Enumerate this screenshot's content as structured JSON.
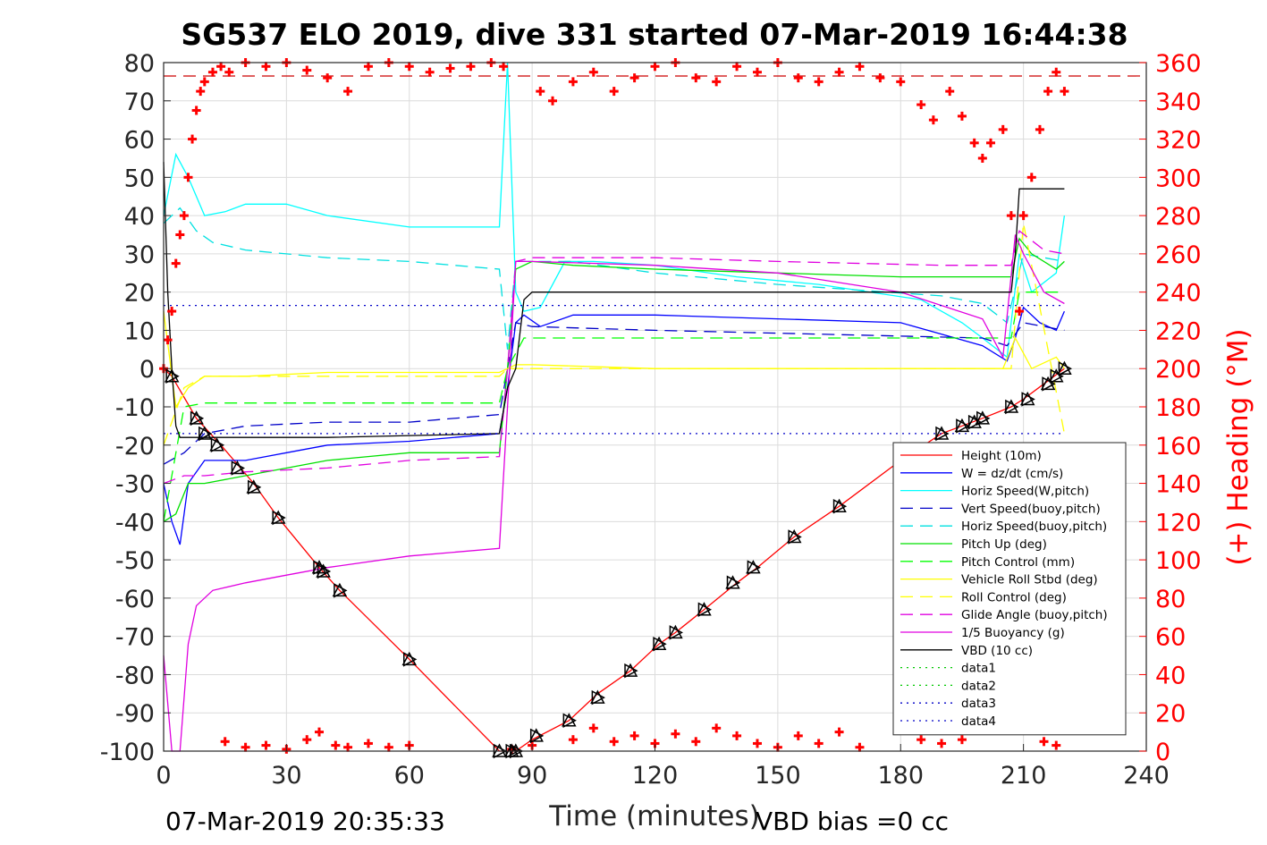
{
  "chart_data": {
    "type": "line",
    "title": "SG537 ELO 2019, dive 331 started 07-Mar-2019 16:44:38",
    "xlabel": "Time (minutes)",
    "ylabel_right": "(+) Heading (°M)",
    "footer_left": "07-Mar-2019 20:35:33",
    "footer_right": "VBD bias =0 cc",
    "xlim": [
      0,
      240
    ],
    "ylim": [
      -100,
      80
    ],
    "ylim_right": [
      0,
      360
    ],
    "x_ticks": [
      "0",
      "30",
      "60",
      "90",
      "120",
      "150",
      "180",
      "210",
      "240"
    ],
    "y_ticks": [
      "80",
      "70",
      "60",
      "50",
      "40",
      "30",
      "20",
      "10",
      "0",
      "-10",
      "-20",
      "-30",
      "-40",
      "-50",
      "-60",
      "-70",
      "-80",
      "-90",
      "-100"
    ],
    "y_ticks_right": [
      "360",
      "340",
      "320",
      "300",
      "280",
      "260",
      "240",
      "220",
      "200",
      "180",
      "160",
      "140",
      "120",
      "100",
      "80",
      "60",
      "40",
      "20",
      "0"
    ],
    "grid": true,
    "legend_position": "lower-right",
    "series": [
      {
        "name": "Height (10m)",
        "color": "#ff0000",
        "style": "solid",
        "x": [
          0,
          2,
          8,
          14,
          22,
          28,
          38,
          43,
          60,
          82,
          84,
          86,
          90,
          99,
          106,
          114,
          121,
          125,
          132,
          140,
          145,
          154,
          165,
          180,
          190,
          200,
          207,
          210,
          215,
          220
        ],
        "y": [
          0,
          -2,
          -13,
          -20,
          -30,
          -39,
          -52,
          -58,
          -76,
          -100,
          -100,
          -100,
          -97,
          -92,
          -85,
          -79,
          -72,
          -69,
          -63,
          -56,
          -52,
          -44,
          -36,
          -24,
          -17,
          -13,
          -10,
          -8,
          -4,
          0
        ]
      },
      {
        "name": "W = dz/dt (cm/s)",
        "color": "#0000ff",
        "style": "solid",
        "x": [
          0,
          2,
          4,
          6,
          10,
          20,
          30,
          40,
          60,
          82,
          84,
          86,
          88,
          92,
          100,
          120,
          150,
          180,
          200,
          206,
          208,
          210,
          214,
          218,
          220
        ],
        "y": [
          -30,
          -40,
          -46,
          -30,
          -24,
          -24,
          -22,
          -20,
          -19,
          -17,
          -5,
          12,
          14,
          11,
          14,
          14,
          13,
          12,
          6,
          2,
          8,
          16,
          12,
          10,
          15
        ]
      },
      {
        "name": "Horiz Speed(W,pitch)",
        "color": "#00ffff",
        "style": "solid",
        "x": [
          0,
          3,
          6,
          10,
          15,
          20,
          30,
          40,
          60,
          82,
          84,
          86,
          88,
          92,
          98,
          105,
          120,
          140,
          160,
          185,
          195,
          200,
          206,
          209,
          212,
          218,
          220
        ],
        "y": [
          40,
          56,
          50,
          40,
          41,
          43,
          43,
          40,
          37,
          37,
          80,
          20,
          15,
          16,
          28,
          28,
          27,
          24,
          22,
          18,
          12,
          8,
          3,
          30,
          20,
          25,
          40
        ]
      },
      {
        "name": "Vert Speed(buoy,pitch)",
        "color": "#0000c8",
        "style": "dashed",
        "x": [
          0,
          5,
          10,
          20,
          40,
          60,
          82,
          84,
          86,
          90,
          120,
          160,
          200,
          206,
          210,
          220
        ],
        "y": [
          -25,
          -22,
          -17,
          -15,
          -14,
          -14,
          -12,
          0,
          12,
          11,
          10,
          9,
          8,
          6,
          12,
          10
        ]
      },
      {
        "name": "Horiz Speed(buoy,pitch)",
        "color": "#00e0e0",
        "style": "dashed",
        "x": [
          0,
          4,
          8,
          12,
          20,
          40,
          60,
          82,
          84,
          86,
          90,
          100,
          120,
          150,
          190,
          200,
          206,
          210,
          220
        ],
        "y": [
          38,
          42,
          36,
          33,
          31,
          29,
          28,
          26,
          5,
          28,
          28,
          28,
          25,
          22,
          19,
          17,
          12,
          30,
          28
        ]
      },
      {
        "name": "Pitch Up (deg)",
        "color": "#00e000",
        "style": "solid",
        "x": [
          0,
          3,
          6,
          10,
          20,
          40,
          60,
          82,
          84,
          86,
          90,
          100,
          120,
          150,
          180,
          200,
          207,
          209,
          212,
          218,
          220
        ],
        "y": [
          -40,
          -38,
          -30,
          -30,
          -28,
          -24,
          -22,
          -22,
          0,
          26,
          28,
          27,
          26,
          25,
          24,
          24,
          24,
          34,
          30,
          26,
          28
        ]
      },
      {
        "name": "Pitch Control (mm)",
        "color": "#00ff00",
        "style": "dashed",
        "x": [
          0,
          5,
          10,
          82,
          84,
          88,
          150,
          207,
          209,
          220
        ],
        "y": [
          -40,
          -10,
          -9,
          -9,
          0,
          8,
          8,
          8,
          20,
          20
        ]
      },
      {
        "name": "Vehicle Roll Stbd (deg)",
        "color": "#ffff00",
        "style": "solid",
        "x": [
          0,
          3,
          6,
          10,
          15,
          20,
          40,
          60,
          82,
          84,
          86,
          90,
          120,
          150,
          180,
          200,
          205,
          208,
          212,
          218,
          220
        ],
        "y": [
          15,
          -10,
          -5,
          -2,
          -2,
          -2,
          -1,
          -1,
          -1,
          0,
          1,
          1,
          0,
          0,
          0,
          0,
          0,
          8,
          0,
          3,
          0
        ]
      },
      {
        "name": "Roll Control (deg)",
        "color": "#ffff00",
        "style": "dashed",
        "x": [
          0,
          5,
          10,
          40,
          60,
          82,
          84,
          86,
          120,
          180,
          207,
          210,
          220
        ],
        "y": [
          -20,
          -5,
          -2,
          -2,
          -2,
          -2,
          0,
          0,
          0,
          0,
          0,
          38,
          -17
        ]
      },
      {
        "name": "Glide Angle (buoy,pitch)",
        "color": "#e000e0",
        "style": "dashed",
        "x": [
          0,
          5,
          10,
          20,
          40,
          60,
          82,
          84,
          86,
          90,
          120,
          150,
          190,
          207,
          209,
          215,
          220
        ],
        "y": [
          -30,
          -28,
          -28,
          -27,
          -26,
          -24,
          -23,
          0,
          28,
          29,
          29,
          28,
          27,
          27,
          36,
          31,
          30
        ]
      },
      {
        "name": "1/5 Buoyancy (g)",
        "color": "#e000e0",
        "style": "solid",
        "x": [
          0,
          2,
          4,
          6,
          8,
          12,
          20,
          30,
          40,
          60,
          82,
          84,
          86,
          90,
          120,
          150,
          180,
          200,
          205,
          208,
          210,
          215,
          220
        ],
        "y": [
          -75,
          -100,
          -100,
          -72,
          -62,
          -58,
          -56,
          -54,
          -52,
          -49,
          -47,
          -10,
          28,
          28,
          27,
          25,
          20,
          13,
          3,
          35,
          30,
          20,
          17
        ]
      },
      {
        "name": "VBD (10 cc)",
        "color": "#000000",
        "style": "solid",
        "x": [
          0,
          1,
          2,
          3,
          4,
          8,
          40,
          82,
          84,
          86,
          88,
          90,
          120,
          150,
          207,
          208,
          209,
          220
        ],
        "y": [
          54,
          20,
          0,
          -15,
          -18,
          -18,
          -18,
          -17,
          -5,
          0,
          18,
          20,
          20,
          20,
          20,
          30,
          47,
          47
        ]
      },
      {
        "name": "data1",
        "color": "#00c800",
        "style": "dotted",
        "x": [],
        "y": []
      },
      {
        "name": "data2",
        "color": "#00c800",
        "style": "dotted",
        "x": [],
        "y": []
      },
      {
        "name": "data3",
        "color": "#0000c8",
        "style": "dotted",
        "x": [
          0,
          220
        ],
        "y": [
          16.5,
          16.5
        ]
      },
      {
        "name": "data4",
        "color": "#0000c8",
        "style": "dotted",
        "x": [
          0,
          220
        ],
        "y": [
          -17,
          -17
        ]
      }
    ],
    "heading_series": {
      "color": "#ff0000",
      "marker": "+",
      "axis": "right",
      "x": [
        0,
        1,
        2,
        3,
        4,
        5,
        6,
        7,
        8,
        9,
        10,
        12,
        14,
        16,
        20,
        25,
        30,
        35,
        40,
        45,
        50,
        55,
        60,
        65,
        70,
        75,
        80,
        83,
        92,
        95,
        100,
        105,
        110,
        115,
        120,
        125,
        130,
        135,
        140,
        145,
        150,
        155,
        160,
        165,
        170,
        175,
        180,
        185,
        188,
        192,
        195,
        198,
        200,
        202,
        205,
        207,
        209,
        210,
        212,
        214,
        216,
        218,
        220
      ],
      "y": [
        200,
        215,
        230,
        255,
        270,
        280,
        300,
        320,
        335,
        345,
        350,
        355,
        358,
        355,
        360,
        358,
        360,
        356,
        352,
        345,
        358,
        360,
        358,
        355,
        357,
        358,
        360,
        358,
        345,
        340,
        350,
        355,
        345,
        352,
        358,
        360,
        352,
        350,
        358,
        355,
        360,
        352,
        350,
        355,
        358,
        352,
        350,
        338,
        330,
        345,
        332,
        318,
        310,
        318,
        325,
        280,
        230,
        280,
        300,
        325,
        345,
        355,
        345
      ]
    },
    "dashed_reference_line": {
      "color": "#cc0000",
      "axis": "right",
      "y": 353
    },
    "bottom_heading_points": {
      "color": "#ff0000",
      "x": [
        15,
        20,
        25,
        30,
        35,
        38,
        42,
        45,
        50,
        55,
        60,
        85,
        90,
        100,
        105,
        110,
        115,
        120,
        125,
        130,
        135,
        140,
        145,
        150,
        155,
        160,
        165,
        170,
        185,
        190,
        195,
        215,
        218
      ],
      "y": [
        5,
        2,
        3,
        1,
        6,
        10,
        3,
        2,
        4,
        2,
        3,
        1,
        3,
        6,
        12,
        5,
        8,
        4,
        9,
        5,
        12,
        8,
        4,
        2,
        8,
        4,
        10,
        2,
        6,
        4,
        6,
        5,
        3
      ]
    },
    "markers": {
      "x": [
        2,
        8,
        10,
        13,
        18,
        22,
        28,
        38,
        39,
        43,
        60,
        82,
        85,
        86,
        91,
        99,
        106,
        114,
        121,
        125,
        132,
        139,
        144,
        154,
        165,
        190,
        195,
        198,
        200,
        207,
        211,
        216,
        218,
        220
      ],
      "y": [
        -2,
        -13,
        -17,
        -20,
        -26,
        -31,
        -39,
        -52,
        -53,
        -58,
        -76,
        -100,
        -100,
        -100,
        -96,
        -92,
        -86,
        -79,
        -72,
        -69,
        -63,
        -56,
        -52,
        -44,
        -36,
        -17,
        -15,
        -14,
        -13,
        -10,
        -8,
        -4,
        -2,
        0
      ]
    }
  }
}
